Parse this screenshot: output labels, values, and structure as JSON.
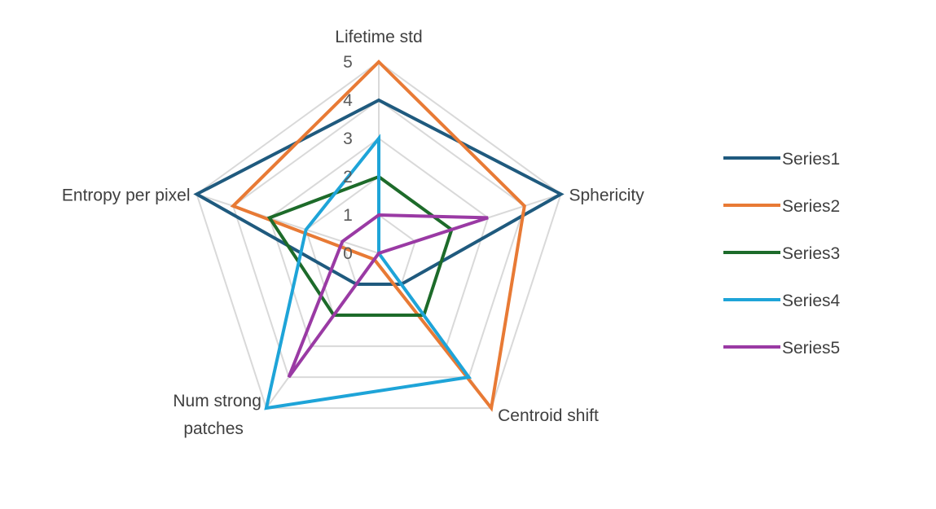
{
  "chart_data": {
    "type": "radar",
    "title": "",
    "categories": [
      "Lifetime std",
      "Sphericity",
      "Centroid shift",
      "Num strong patches",
      "Entropy per pixel"
    ],
    "category_lines": [
      [
        "Lifetime std"
      ],
      [
        "Sphericity"
      ],
      [
        "Centroid shift"
      ],
      [
        "Num strong",
        "patches"
      ],
      [
        "Entropy per pixel"
      ]
    ],
    "rmin": 0,
    "rmax": 5,
    "ticks": [
      0,
      1,
      2,
      3,
      4,
      5
    ],
    "grid": true,
    "legend_position": "right",
    "series": [
      {
        "name": "Series1",
        "color": "#1f5a7e",
        "values": [
          4,
          5,
          1,
          1,
          5
        ]
      },
      {
        "name": "Series2",
        "color": "#e87a35",
        "values": [
          5,
          4,
          5,
          0.2,
          4
        ]
      },
      {
        "name": "Series3",
        "color": "#1d6b2a",
        "values": [
          2,
          2,
          2,
          2,
          3
        ]
      },
      {
        "name": "Series4",
        "color": "#1ea4d8",
        "values": [
          3,
          0,
          4,
          5,
          2
        ]
      },
      {
        "name": "Series5",
        "color": "#9a3aa4",
        "values": [
          1,
          3,
          0,
          4,
          1
        ]
      }
    ]
  }
}
